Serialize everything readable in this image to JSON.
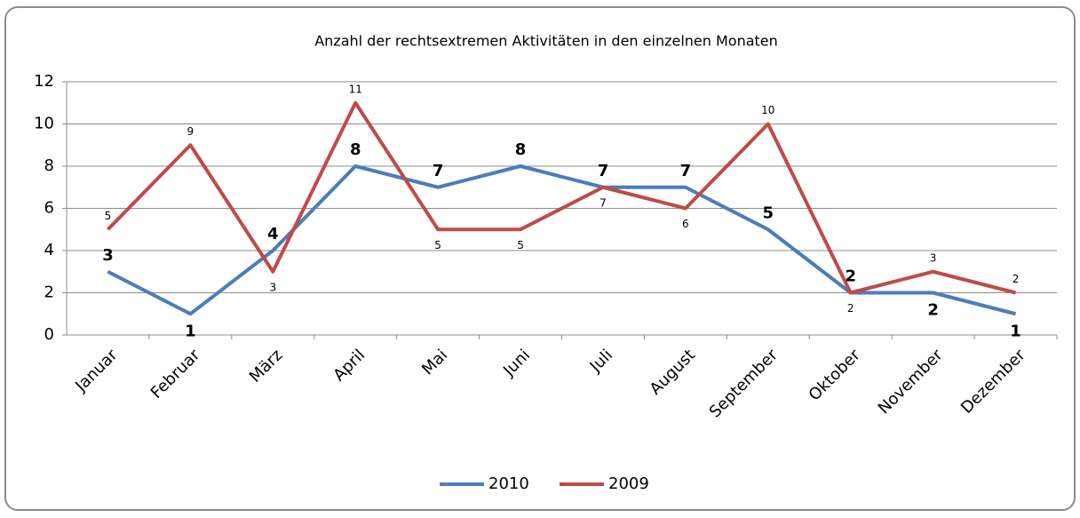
{
  "chart_data": {
    "type": "line",
    "title": "Anzahl der rechtsextremen Aktivitäten in den einzelnen Monaten",
    "categories": [
      "Januar",
      "Februar",
      "März",
      "April",
      "Mai",
      "Juni",
      "Juli",
      "August",
      "September",
      "Oktober",
      "November",
      "Dezember"
    ],
    "series": [
      {
        "name": "2010",
        "color": "#4a7ebb",
        "values": [
          3,
          1,
          4,
          8,
          7,
          8,
          7,
          7,
          5,
          2,
          2,
          1
        ]
      },
      {
        "name": "2009",
        "color": "#be4b48",
        "values": [
          5,
          9,
          3,
          11,
          5,
          5,
          7,
          6,
          10,
          2,
          3,
          2
        ]
      }
    ],
    "ylim": [
      0,
      12
    ],
    "yticks": [
      0,
      2,
      4,
      6,
      8,
      10,
      12
    ],
    "grid": true,
    "legend": "bottom"
  }
}
